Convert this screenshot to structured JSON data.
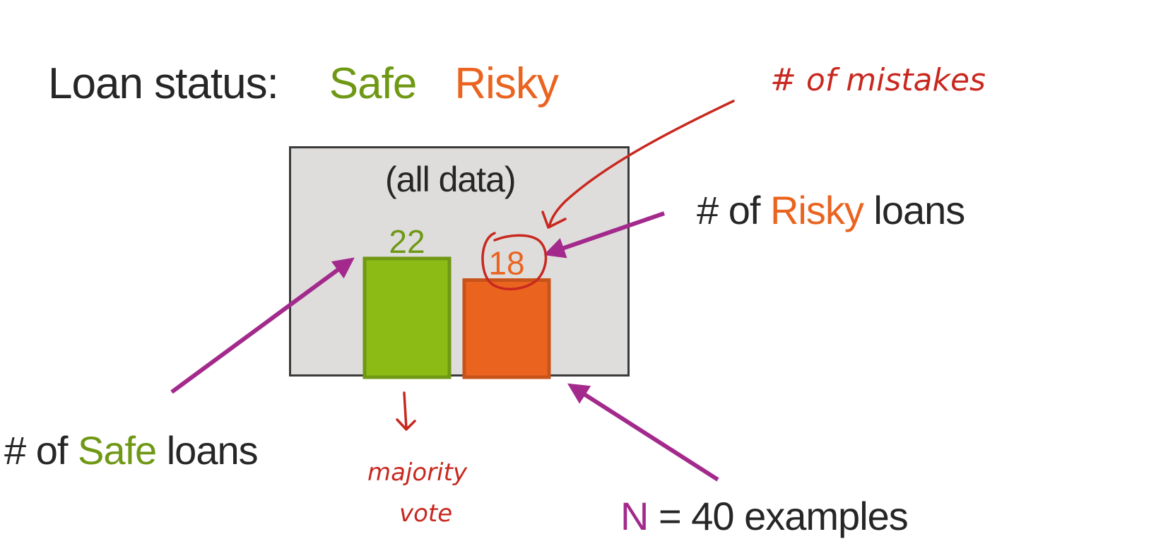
{
  "legend": {
    "label": "Loan status:",
    "safe": "Safe",
    "risky": "Risky"
  },
  "node": {
    "title": "(all data)"
  },
  "chart_data": {
    "type": "bar",
    "categories": [
      "Safe",
      "Risky"
    ],
    "values": [
      22,
      18
    ],
    "colors": [
      "#8dbb15",
      "#ea6420"
    ],
    "border_colors": [
      "#6f9814",
      "#c8531a"
    ]
  },
  "annotations": {
    "risky_prefix": "# of ",
    "risky_word": "Risky",
    "risky_suffix": " loans",
    "safe_prefix": "# of ",
    "safe_word": "Safe",
    "safe_suffix": " loans",
    "n_symbol": "N",
    "n_rest": " = 40 examples"
  },
  "handwriting": {
    "mistakes": "# of mistakes",
    "majority_1": "majority",
    "majority_2": "vote"
  },
  "colors": {
    "safe": "#6f9814",
    "risky": "#ea6420",
    "arrow": "#a32a8c",
    "ink": "#c8281f",
    "box": "#dedddc"
  }
}
